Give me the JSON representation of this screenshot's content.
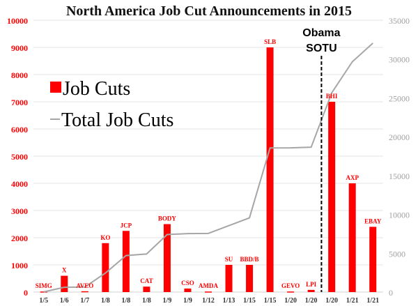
{
  "chart_data": {
    "type": "bar",
    "title": "North America Job Cut Announcements in 2015",
    "categories": [
      "1/5",
      "1/6",
      "1/7",
      "1/8",
      "1/8",
      "1/8",
      "1/9",
      "1/9",
      "1/12",
      "1/13",
      "1/15",
      "1/15",
      "1/20",
      "1/20",
      "1/20",
      "1/21",
      "1/21"
    ],
    "bar_labels": [
      "SIMG",
      "X",
      "AVEO",
      "KO",
      "JCP",
      "CAT",
      "BODY",
      "CSO",
      "AMDA",
      "SU",
      "BBD/B",
      "SLB",
      "GEVO",
      "LPI",
      "BHI",
      "AXP",
      "EBAY"
    ],
    "series": [
      {
        "name": "Job Cuts",
        "type": "bar",
        "axis": "left",
        "color": "#ff0000",
        "values": [
          20,
          600,
          30,
          1800,
          2250,
          200,
          2500,
          130,
          20,
          1000,
          1000,
          9000,
          20,
          80,
          7000,
          4000,
          2400
        ]
      },
      {
        "name": "Total Job Cuts",
        "type": "line",
        "axis": "right",
        "color": "#a6a6a6",
        "values": [
          20,
          620,
          650,
          2450,
          4700,
          4900,
          7400,
          7530,
          7550,
          8550,
          9550,
          18550,
          18570,
          18650,
          25650,
          29650,
          32050
        ]
      }
    ],
    "ylim_left": [
      0,
      10000
    ],
    "yticks_left": [
      "0",
      "1000",
      "2000",
      "3000",
      "4000",
      "5000",
      "6000",
      "7000",
      "8000",
      "9000",
      "10000"
    ],
    "ylim_right": [
      0,
      35000
    ],
    "yticks_right": [
      "0",
      "5000",
      "10000",
      "15000",
      "20000",
      "25000",
      "30000",
      "35000"
    ],
    "grid": true,
    "legend": {
      "placement": "top-left",
      "entries": [
        "Job Cuts",
        "Total Job Cuts"
      ]
    },
    "annotation": {
      "text_line1": "Obama",
      "text_line2": "SOTU",
      "between_categories": [
        13,
        14
      ]
    }
  }
}
